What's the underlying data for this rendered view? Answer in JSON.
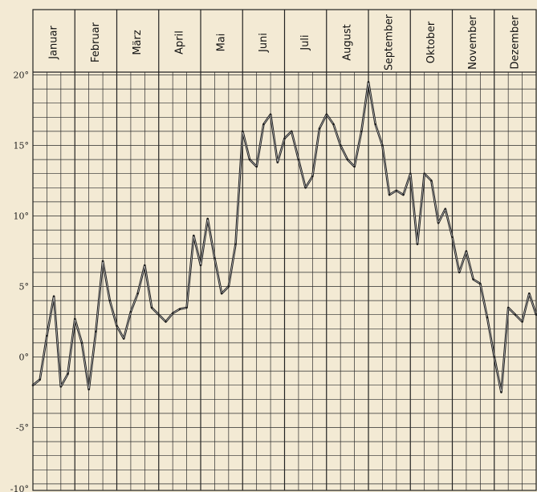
{
  "chart_data": {
    "type": "line",
    "months": [
      "Januar",
      "Februar",
      "März",
      "April",
      "Mai",
      "Juni",
      "Juli",
      "August",
      "September",
      "Oktober",
      "November",
      "Dezember"
    ],
    "yticks": [
      {
        "value": 20,
        "label": "20°"
      },
      {
        "value": 15,
        "label": "15°"
      },
      {
        "value": 10,
        "label": "10°"
      },
      {
        "value": 5,
        "label": "5°"
      },
      {
        "value": 0,
        "label": "0°"
      },
      {
        "value": -5,
        "label": "-5°"
      },
      {
        "value": -10,
        "label": "-10°"
      }
    ],
    "ylim": [
      -10,
      24.2
    ],
    "xlim": [
      0,
      72
    ],
    "grid": true,
    "series": [
      {
        "x": [
          0,
          1,
          2,
          3,
          4,
          5,
          6,
          7,
          8,
          9,
          10,
          11,
          12,
          13,
          14,
          15,
          16,
          17,
          18,
          19,
          20,
          21,
          22,
          23,
          24,
          25,
          26,
          27,
          28,
          29,
          30,
          31,
          32,
          33,
          34,
          35,
          36,
          37,
          38,
          39,
          40,
          41,
          42,
          43,
          44,
          45,
          46,
          47,
          48,
          49,
          50,
          51,
          52,
          53,
          54,
          55,
          56,
          57,
          58,
          59,
          60,
          61,
          62,
          63,
          64,
          65,
          66,
          67,
          68,
          69,
          70,
          71,
          72
        ],
        "values": [
          -2.0,
          -1.6,
          1.5,
          4.3,
          -2.1,
          -1.2,
          2.7,
          1.0,
          -2.3,
          1.8,
          6.8,
          4.0,
          2.2,
          1.3,
          3.2,
          4.5,
          6.5,
          3.5,
          3.0,
          2.5,
          3.1,
          3.4,
          3.5,
          8.6,
          6.5,
          9.8,
          7.0,
          4.5,
          5.0,
          8.0,
          16.0,
          14.0,
          13.5,
          16.5,
          17.2,
          13.8,
          15.5,
          16.0,
          14.0,
          12.0,
          12.8,
          16.2,
          17.2,
          16.5,
          15.0,
          14.0,
          13.5,
          16.0,
          19.5,
          16.5,
          15.0,
          11.5,
          11.8,
          11.5,
          13.0,
          8.0,
          13.0,
          12.5,
          9.5,
          10.5,
          8.5,
          6.0,
          7.5,
          5.5,
          5.2,
          2.8,
          0.0,
          -2.5,
          3.5,
          3.0,
          2.5,
          4.5,
          3.0
        ]
      }
    ]
  }
}
